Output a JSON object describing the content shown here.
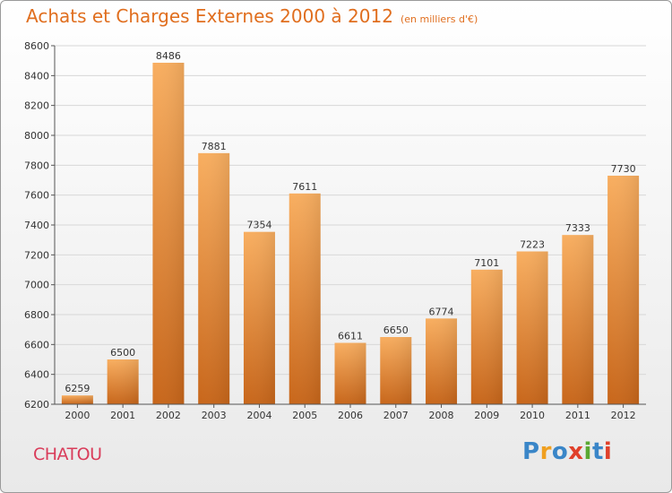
{
  "header": {
    "title": "Achats et Charges Externes 2000 à 2012",
    "subtitle": "(en milliers d'€)"
  },
  "footer": {
    "commune": "CHATOU",
    "logo_letters": [
      "P",
      "r",
      "o",
      "x",
      "i",
      "t",
      "i"
    ]
  },
  "colors": {
    "title": "#e06e1e",
    "bar_light": "#f7a95a",
    "bar_dark": "#c8661a",
    "commune": "#d93c5a",
    "grid": "#d8d8d8"
  },
  "chart_data": {
    "type": "bar",
    "title": "Achats et Charges Externes 2000 à 2012",
    "subtitle": "(en milliers d'€)",
    "xlabel": "",
    "ylabel": "",
    "categories": [
      "2000",
      "2001",
      "2002",
      "2003",
      "2004",
      "2005",
      "2006",
      "2007",
      "2008",
      "2009",
      "2010",
      "2011",
      "2012"
    ],
    "values": [
      6259,
      6500,
      8486,
      7881,
      7354,
      7611,
      6611,
      6650,
      6774,
      7101,
      7223,
      7333,
      7730
    ],
    "ylim": [
      6200,
      8600
    ],
    "yticks": [
      6200,
      6400,
      6600,
      6800,
      7000,
      7200,
      7400,
      7600,
      7800,
      8000,
      8200,
      8400,
      8600
    ],
    "grid": true,
    "legend": "none"
  }
}
